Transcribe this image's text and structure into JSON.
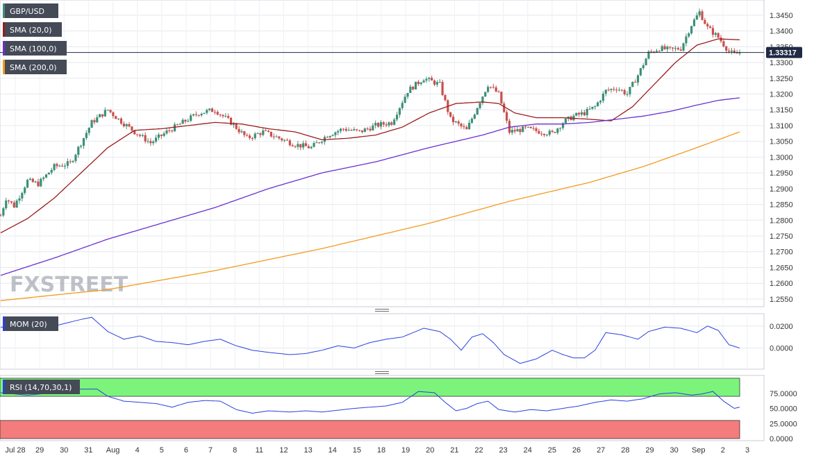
{
  "symbol": "GBP/USD",
  "colors": {
    "bull": "#3d8f78",
    "bear": "#c8504d",
    "sma20": "#9b1c1c",
    "sma100": "#6a2fd0",
    "sma200": "#f39a1c",
    "osc": "#2a3fe0",
    "rsi_overbought": "#7cf47c",
    "rsi_oversold": "#f47c7c",
    "price_tag": "#1f2a44"
  },
  "legend": {
    "price": "GBP/USD",
    "sma20": "SMA (20,0)",
    "sma100": "SMA (100,0)",
    "sma200": "SMA (200,0)",
    "mom": "MOM (20)",
    "rsi": "RSI (14,70,30,1)"
  },
  "watermark": "FXSTREET",
  "chart_data": [
    {
      "type": "candlestick",
      "panel": "price",
      "ylim": [
        1.253,
        1.3485
      ],
      "y_ticks": [
        "1.3450",
        "1.3400",
        "1.3350",
        "1.3300",
        "1.3250",
        "1.3200",
        "1.3150",
        "1.3100",
        "1.3050",
        "1.3000",
        "1.2950",
        "1.2900",
        "1.2850",
        "1.2800",
        "1.2750",
        "1.2700",
        "1.2650",
        "1.2600",
        "1.2550"
      ],
      "last_price": "1.33317",
      "x_ticks": [
        "Jul 28",
        "29",
        "30",
        "31",
        "Aug",
        "4",
        "5",
        "6",
        "7",
        "8",
        "11",
        "12",
        "13",
        "14",
        "15",
        "18",
        "19",
        "20",
        "21",
        "22",
        "23",
        "24",
        "25",
        "26",
        "27",
        "28",
        "29",
        "30",
        "Sep",
        "2",
        "3"
      ],
      "series": [
        {
          "name": "GBP/USD",
          "anchors": [
            [
              0,
              1.2815
            ],
            [
              2,
              1.287
            ],
            [
              5,
              1.2845
            ],
            [
              10,
              1.2925
            ],
            [
              14,
              1.2915
            ],
            [
              20,
              1.297
            ],
            [
              26,
              1.298
            ],
            [
              34,
              1.311
            ],
            [
              40,
              1.315
            ],
            [
              44,
              1.312
            ],
            [
              50,
              1.308
            ],
            [
              56,
              1.3045
            ],
            [
              62,
              1.308
            ],
            [
              68,
              1.311
            ],
            [
              74,
              1.314
            ],
            [
              80,
              1.315
            ],
            [
              86,
              1.311
            ],
            [
              92,
              1.306
            ],
            [
              98,
              1.308
            ],
            [
              104,
              1.306
            ],
            [
              110,
              1.304
            ],
            [
              116,
              1.303
            ],
            [
              122,
              1.307
            ],
            [
              128,
              1.309
            ],
            [
              134,
              1.308
            ],
            [
              140,
              1.31
            ],
            [
              146,
              1.311
            ],
            [
              152,
              1.321
            ],
            [
              158,
              1.325
            ],
            [
              164,
              1.323
            ],
            [
              168,
              1.312
            ],
            [
              174,
              1.3085
            ],
            [
              178,
              1.316
            ],
            [
              182,
              1.323
            ],
            [
              186,
              1.32
            ],
            [
              190,
              1.308
            ],
            [
              196,
              1.309
            ],
            [
              202,
              1.308
            ],
            [
              206,
              1.3075
            ],
            [
              210,
              1.311
            ],
            [
              214,
              1.313
            ],
            [
              218,
              1.314
            ],
            [
              222,
              1.316
            ],
            [
              226,
              1.321
            ],
            [
              230,
              1.322
            ],
            [
              234,
              1.32
            ],
            [
              238,
              1.326
            ],
            [
              242,
              1.333
            ],
            [
              246,
              1.3345
            ],
            [
              250,
              1.334
            ],
            [
              254,
              1.3345
            ],
            [
              258,
              1.342
            ],
            [
              261,
              1.346
            ],
            [
              264,
              1.341
            ],
            [
              268,
              1.338
            ],
            [
              272,
              1.3335
            ],
            [
              274,
              1.3325
            ],
            [
              276,
              1.3332
            ]
          ]
        },
        {
          "name": "SMA (20,0)",
          "anchors": [
            [
              0,
              1.276
            ],
            [
              10,
              1.2805
            ],
            [
              20,
              1.287
            ],
            [
              30,
              1.295
            ],
            [
              40,
              1.303
            ],
            [
              50,
              1.3085
            ],
            [
              60,
              1.309
            ],
            [
              70,
              1.31
            ],
            [
              80,
              1.311
            ],
            [
              90,
              1.3105
            ],
            [
              100,
              1.309
            ],
            [
              110,
              1.308
            ],
            [
              120,
              1.3055
            ],
            [
              130,
              1.306
            ],
            [
              140,
              1.307
            ],
            [
              150,
              1.3095
            ],
            [
              160,
              1.314
            ],
            [
              170,
              1.317
            ],
            [
              180,
              1.3175
            ],
            [
              186,
              1.317
            ],
            [
              192,
              1.314
            ],
            [
              200,
              1.3125
            ],
            [
              210,
              1.3125
            ],
            [
              220,
              1.312
            ],
            [
              228,
              1.3115
            ],
            [
              236,
              1.316
            ],
            [
              244,
              1.323
            ],
            [
              252,
              1.33
            ],
            [
              260,
              1.3355
            ],
            [
              268,
              1.3375
            ],
            [
              276,
              1.3372
            ]
          ]
        },
        {
          "name": "SMA (100,0)",
          "anchors": [
            [
              0,
              1.2625
            ],
            [
              20,
              1.268
            ],
            [
              40,
              1.274
            ],
            [
              60,
              1.279
            ],
            [
              80,
              1.284
            ],
            [
              100,
              1.29
            ],
            [
              120,
              1.295
            ],
            [
              140,
              1.2985
            ],
            [
              160,
              1.303
            ],
            [
              180,
              1.307
            ],
            [
              190,
              1.3095
            ],
            [
              200,
              1.3105
            ],
            [
              210,
              1.3105
            ],
            [
              220,
              1.311
            ],
            [
              230,
              1.312
            ],
            [
              240,
              1.313
            ],
            [
              250,
              1.3145
            ],
            [
              260,
              1.3165
            ],
            [
              268,
              1.318
            ],
            [
              276,
              1.3188
            ]
          ]
        },
        {
          "name": "SMA (200,0)",
          "anchors": [
            [
              0,
              1.2545
            ],
            [
              40,
              1.258
            ],
            [
              80,
              1.264
            ],
            [
              120,
              1.271
            ],
            [
              160,
              1.279
            ],
            [
              190,
              1.286
            ],
            [
              220,
              1.292
            ],
            [
              240,
              1.297
            ],
            [
              260,
              1.303
            ],
            [
              276,
              1.308
            ]
          ]
        }
      ]
    },
    {
      "type": "line",
      "panel": "momentum",
      "title": "MOM (20)",
      "ylim": [
        -0.018,
        0.03
      ],
      "y_ticks": [
        "0.0200",
        "0.0000"
      ],
      "series": [
        {
          "name": "MOM (20)",
          "anchors": [
            [
              0,
              0.019
            ],
            [
              10,
              0.018
            ],
            [
              20,
              0.02
            ],
            [
              30,
              0.026
            ],
            [
              34,
              0.028
            ],
            [
              40,
              0.015
            ],
            [
              46,
              0.008
            ],
            [
              52,
              0.011
            ],
            [
              58,
              0.006
            ],
            [
              64,
              0.005
            ],
            [
              70,
              0.003
            ],
            [
              76,
              0.006
            ],
            [
              82,
              0.008
            ],
            [
              88,
              0.002
            ],
            [
              94,
              -0.002
            ],
            [
              100,
              -0.004
            ],
            [
              108,
              -0.006
            ],
            [
              114,
              -0.005
            ],
            [
              120,
              -0.002
            ],
            [
              126,
              0.002
            ],
            [
              132,
              0.0
            ],
            [
              138,
              0.005
            ],
            [
              144,
              0.008
            ],
            [
              150,
              0.01
            ],
            [
              158,
              0.018
            ],
            [
              164,
              0.015
            ],
            [
              168,
              0.008
            ],
            [
              172,
              -0.002
            ],
            [
              176,
              0.01
            ],
            [
              180,
              0.013
            ],
            [
              184,
              0.005
            ],
            [
              188,
              -0.006
            ],
            [
              194,
              -0.014
            ],
            [
              200,
              -0.01
            ],
            [
              206,
              -0.002
            ],
            [
              210,
              -0.006
            ],
            [
              214,
              -0.009
            ],
            [
              218,
              -0.009
            ],
            [
              222,
              -0.002
            ],
            [
              226,
              0.014
            ],
            [
              232,
              0.012
            ],
            [
              238,
              0.008
            ],
            [
              242,
              0.015
            ],
            [
              248,
              0.019
            ],
            [
              254,
              0.018
            ],
            [
              260,
              0.014
            ],
            [
              264,
              0.02
            ],
            [
              268,
              0.016
            ],
            [
              272,
              0.003
            ],
            [
              276,
              0.0
            ]
          ]
        }
      ]
    },
    {
      "type": "line",
      "panel": "rsi",
      "title": "RSI (14,70,30,1)",
      "ylim": [
        0,
        100
      ],
      "overbought": 70,
      "oversold": 30,
      "y_ticks": [
        "75.0000",
        "50.0000",
        "25.0000",
        "0.0000"
      ],
      "series": [
        {
          "name": "RSI (14,70,30,1)",
          "anchors": [
            [
              0,
              76
            ],
            [
              10,
              72
            ],
            [
              20,
              76
            ],
            [
              30,
              82
            ],
            [
              36,
              82
            ],
            [
              40,
              70
            ],
            [
              46,
              62
            ],
            [
              52,
              60
            ],
            [
              58,
              58
            ],
            [
              64,
              52
            ],
            [
              70,
              60
            ],
            [
              76,
              63
            ],
            [
              82,
              62
            ],
            [
              88,
              48
            ],
            [
              94,
              42
            ],
            [
              100,
              46
            ],
            [
              108,
              44
            ],
            [
              114,
              46
            ],
            [
              120,
              44
            ],
            [
              126,
              47
            ],
            [
              132,
              50
            ],
            [
              138,
              52
            ],
            [
              144,
              54
            ],
            [
              150,
              60
            ],
            [
              156,
              78
            ],
            [
              162,
              76
            ],
            [
              166,
              60
            ],
            [
              170,
              46
            ],
            [
              174,
              50
            ],
            [
              178,
              58
            ],
            [
              182,
              62
            ],
            [
              186,
              48
            ],
            [
              192,
              44
            ],
            [
              198,
              48
            ],
            [
              204,
              46
            ],
            [
              210,
              50
            ],
            [
              216,
              54
            ],
            [
              222,
              60
            ],
            [
              228,
              64
            ],
            [
              234,
              62
            ],
            [
              240,
              66
            ],
            [
              246,
              74
            ],
            [
              252,
              76
            ],
            [
              258,
              72
            ],
            [
              262,
              74
            ],
            [
              266,
              78
            ],
            [
              270,
              62
            ],
            [
              274,
              50
            ],
            [
              276,
              52
            ]
          ]
        }
      ]
    }
  ]
}
